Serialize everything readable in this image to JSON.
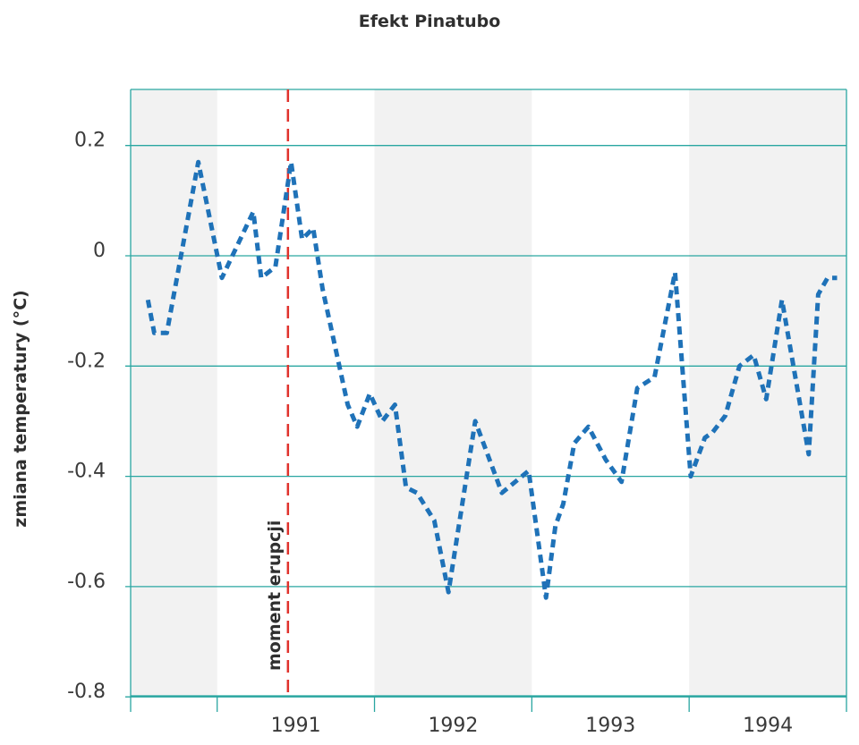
{
  "chart_data": {
    "type": "line",
    "title": "Efekt Pinatubo",
    "xlabel": "",
    "ylabel": "zmiana temperatury (°C)",
    "ylim": [
      -0.8,
      0.3
    ],
    "yticks": [
      0.2,
      0,
      -0.2,
      -0.4,
      -0.6,
      -0.8
    ],
    "ytick_labels": [
      "0.2",
      "0",
      "-0.2",
      "-0.4",
      "-0.6",
      "-0.8"
    ],
    "xlim": [
      1990.0,
      1994.55
    ],
    "year_bands": [
      {
        "label": "",
        "start": 1990.0,
        "end": 1990.55,
        "shaded": true
      },
      {
        "label": "1991",
        "start": 1990.55,
        "end": 1991.55,
        "shaded": false
      },
      {
        "label": "1992",
        "start": 1991.55,
        "end": 1992.55,
        "shaded": true
      },
      {
        "label": "1993",
        "start": 1992.55,
        "end": 1993.55,
        "shaded": false
      },
      {
        "label": "1994",
        "start": 1993.55,
        "end": 1994.55,
        "shaded": true
      }
    ],
    "annotation": {
      "label": "moment erupcji",
      "x": 1991.0
    },
    "colors": {
      "series": "#1f72b8",
      "eruption": "#e0322c",
      "grid": "#2aa6a1",
      "band": "#f2f2f2",
      "text": "#2f2f2f"
    },
    "series": [
      {
        "name": "zmiana temperatury",
        "x": [
          1990.11,
          1990.15,
          1990.23,
          1990.43,
          1990.58,
          1990.78,
          1990.83,
          1990.92,
          1991.02,
          1991.09,
          1991.16,
          1991.22,
          1991.38,
          1991.44,
          1991.52,
          1991.6,
          1991.68,
          1991.75,
          1991.82,
          1991.93,
          1992.02,
          1992.19,
          1992.36,
          1992.53,
          1992.64,
          1992.7,
          1992.75,
          1992.82,
          1992.91,
          1993.02,
          1993.12,
          1993.22,
          1993.33,
          1993.46,
          1993.56,
          1993.65,
          1993.7,
          1993.78,
          1993.87,
          1993.96,
          1994.04,
          1994.14,
          1994.31,
          1994.37,
          1994.43,
          1994.49
        ],
        "y": [
          -0.08,
          -0.14,
          -0.14,
          0.17,
          -0.04,
          0.08,
          -0.04,
          -0.02,
          0.17,
          0.03,
          0.05,
          -0.06,
          -0.27,
          -0.31,
          -0.25,
          -0.3,
          -0.27,
          -0.42,
          -0.43,
          -0.48,
          -0.61,
          -0.3,
          -0.43,
          -0.39,
          -0.62,
          -0.49,
          -0.45,
          -0.34,
          -0.31,
          -0.37,
          -0.41,
          -0.24,
          -0.22,
          -0.03,
          -0.4,
          -0.33,
          -0.32,
          -0.29,
          -0.2,
          -0.18,
          -0.26,
          -0.08,
          -0.36,
          -0.07,
          -0.04,
          -0.04
        ]
      }
    ]
  }
}
